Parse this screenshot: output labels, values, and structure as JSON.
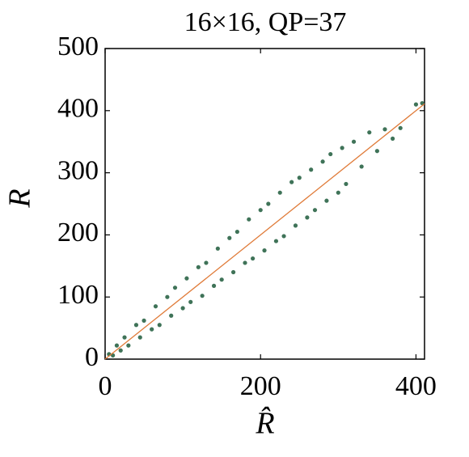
{
  "chart_data": {
    "type": "scatter",
    "title": "16×16, QP=37",
    "x_label": "R̂",
    "y_label": "R",
    "series": [
      {
        "color": "#3f7358",
        "x": [
          5,
          10,
          15,
          20,
          25,
          30,
          40,
          45,
          50,
          60,
          65,
          70,
          80,
          85,
          90,
          100,
          105,
          110,
          120,
          125,
          130,
          140,
          145,
          150,
          160,
          165,
          170,
          180,
          185,
          190,
          200,
          205,
          210,
          220,
          225,
          230,
          240,
          245,
          250,
          260,
          265,
          270,
          280,
          285,
          290,
          300,
          305,
          310,
          320,
          330,
          340,
          350,
          360,
          370,
          380,
          400,
          408
        ],
        "values": [
          8,
          6,
          22,
          14,
          35,
          22,
          55,
          35,
          62,
          48,
          85,
          55,
          100,
          70,
          115,
          82,
          130,
          92,
          148,
          102,
          155,
          118,
          178,
          128,
          195,
          140,
          205,
          155,
          225,
          162,
          240,
          175,
          250,
          190,
          268,
          198,
          285,
          215,
          292,
          228,
          305,
          240,
          318,
          255,
          330,
          268,
          340,
          282,
          350,
          310,
          365,
          335,
          370,
          355,
          372,
          410,
          412
        ]
      }
    ],
    "reference_line": {
      "x": [
        0,
        411
      ],
      "values": [
        0,
        411
      ],
      "color": "#e07b39"
    },
    "xlim": [
      0,
      411
    ],
    "ylim": [
      0,
      500
    ],
    "xticks": [
      0,
      200,
      400
    ],
    "yticks": [
      0,
      100,
      200,
      300,
      400,
      500
    ]
  }
}
